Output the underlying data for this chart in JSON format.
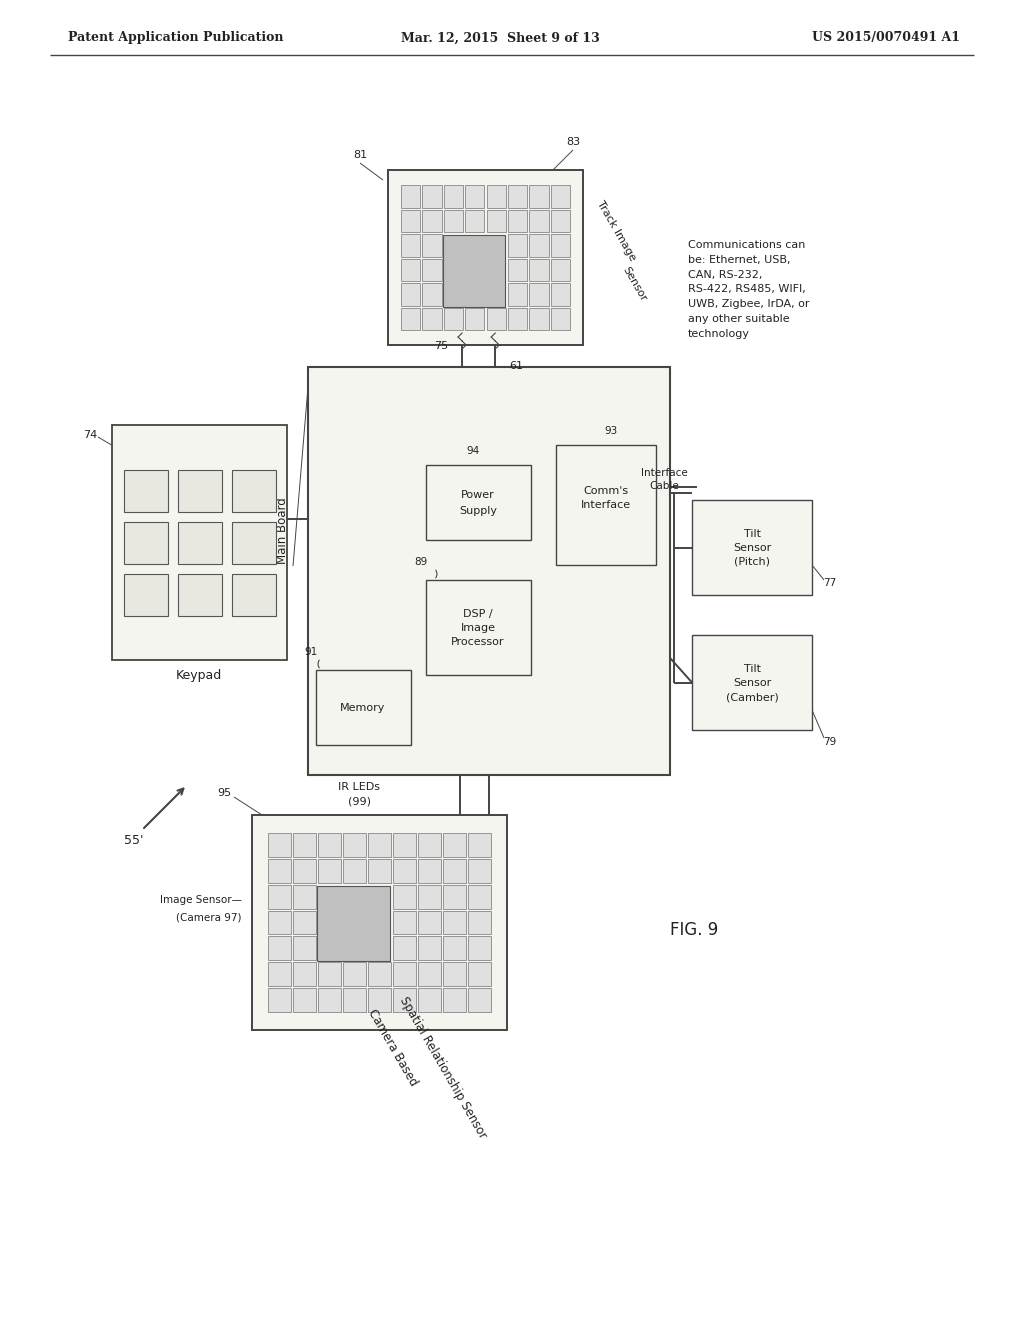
{
  "header_left": "Patent Application Publication",
  "header_mid": "Mar. 12, 2015  Sheet 9 of 13",
  "header_right": "US 2015/0070491 A1",
  "fig_label": "FIG. 9",
  "bg_color": "#f5f5f0",
  "line_color": "#444444",
  "text_color": "#222222",
  "comms_text": "Communications can\nbe: Ethernet, USB,\nCAN, RS-232,\nRS-422, RS485, WIFI,\nUWB, Zigbee, IrDA, or\nany other suitable\ntechnology",
  "arrow_label": "55'"
}
